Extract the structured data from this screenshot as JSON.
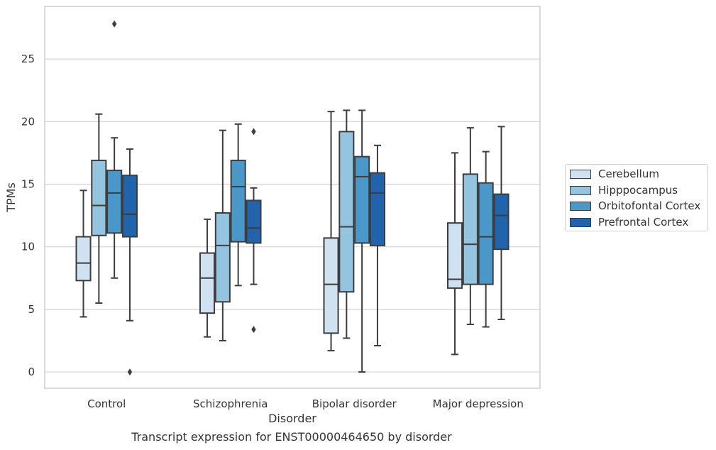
{
  "chart_data": {
    "type": "box",
    "title": "",
    "xlabel": "Disorder",
    "ylabel": "TPMs",
    "ylim": [
      -1.3,
      29.2
    ],
    "yticks": [
      0,
      5,
      10,
      15,
      20,
      25
    ],
    "grid": "y",
    "legend_placement": "right",
    "categories": [
      "Control",
      "Schizophrenia",
      "Bipolar disorder",
      "Major depression"
    ],
    "series": [
      {
        "name": "Cerebellum",
        "color": "#d0e1f2",
        "boxes": [
          {
            "whislo": 4.4,
            "q1": 7.3,
            "med": 8.7,
            "q3": 10.8,
            "whishi": 14.5,
            "fliers": []
          },
          {
            "whislo": 2.8,
            "q1": 4.7,
            "med": 7.5,
            "q3": 9.5,
            "whishi": 12.2,
            "fliers": []
          },
          {
            "whislo": 1.7,
            "q1": 3.1,
            "med": 7.0,
            "q3": 10.7,
            "whishi": 20.8,
            "fliers": []
          },
          {
            "whislo": 1.4,
            "q1": 6.7,
            "med": 7.4,
            "q3": 11.9,
            "whishi": 17.5,
            "fliers": []
          }
        ]
      },
      {
        "name": "Hipppocampus",
        "color": "#94c4df",
        "boxes": [
          {
            "whislo": 5.5,
            "q1": 10.9,
            "med": 13.3,
            "q3": 16.9,
            "whishi": 20.6,
            "fliers": []
          },
          {
            "whislo": 2.5,
            "q1": 5.6,
            "med": 10.1,
            "q3": 12.7,
            "whishi": 19.3,
            "fliers": []
          },
          {
            "whislo": 2.7,
            "q1": 6.4,
            "med": 11.6,
            "q3": 19.2,
            "whishi": 20.9,
            "fliers": []
          },
          {
            "whislo": 3.8,
            "q1": 7.0,
            "med": 10.2,
            "q3": 15.8,
            "whishi": 19.5,
            "fliers": []
          }
        ]
      },
      {
        "name": "Orbitofontal Cortex",
        "color": "#4a98c9",
        "boxes": [
          {
            "whislo": 7.5,
            "q1": 11.1,
            "med": 14.3,
            "q3": 16.1,
            "whishi": 18.7,
            "fliers": [
              27.8
            ]
          },
          {
            "whislo": 6.9,
            "q1": 10.4,
            "med": 14.8,
            "q3": 16.9,
            "whishi": 19.8,
            "fliers": []
          },
          {
            "whislo": 0.0,
            "q1": 10.3,
            "med": 15.6,
            "q3": 17.2,
            "whishi": 20.9,
            "fliers": []
          },
          {
            "whislo": 3.6,
            "q1": 7.0,
            "med": 10.8,
            "q3": 15.1,
            "whishi": 17.6,
            "fliers": []
          }
        ]
      },
      {
        "name": "Prefrontal Cortex",
        "color": "#2164ab",
        "boxes": [
          {
            "whislo": 4.1,
            "q1": 10.8,
            "med": 12.6,
            "q3": 15.7,
            "whishi": 17.8,
            "fliers": [
              0.0
            ]
          },
          {
            "whislo": 7.0,
            "q1": 10.3,
            "med": 11.5,
            "q3": 13.7,
            "whishi": 14.7,
            "fliers": [
              19.2,
              3.4
            ]
          },
          {
            "whislo": 2.1,
            "q1": 10.1,
            "med": 14.3,
            "q3": 15.9,
            "whishi": 18.1,
            "fliers": []
          },
          {
            "whislo": 4.2,
            "q1": 9.8,
            "med": 12.5,
            "q3": 14.2,
            "whishi": 19.6,
            "fliers": []
          }
        ]
      }
    ],
    "caption": "Transcript expression for ENST00000464650 by disorder"
  }
}
